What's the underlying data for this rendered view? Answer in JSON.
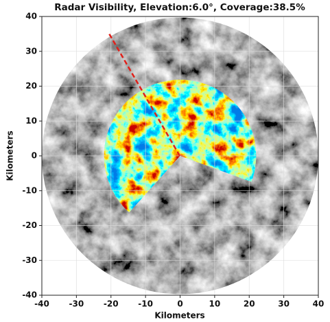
{
  "chart_data": {
    "type": "radar_visibility",
    "title": "Radar Visibility, Elevation:6.0°, Coverage:38.5%",
    "x_label": "Kilometers",
    "y_label": "Kilometers",
    "xlim": [
      -40,
      40
    ],
    "ylim": [
      -40,
      40
    ],
    "xticks": [
      -40,
      -30,
      -20,
      -10,
      0,
      10,
      20,
      30,
      40
    ],
    "yticks": [
      -40,
      -30,
      -20,
      -10,
      0,
      10,
      20,
      30,
      40
    ],
    "grid": true
  }
}
